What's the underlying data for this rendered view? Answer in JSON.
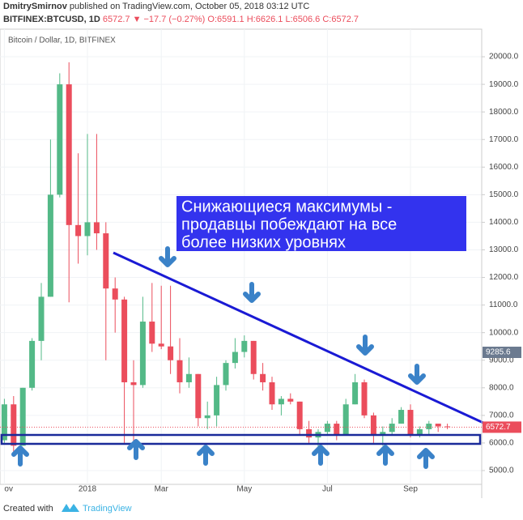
{
  "header": {
    "author": "DmitrySmirnov",
    "published": "published on TradingView.com, October 05, 2018 03:12 UTC",
    "symbol": "BITFINEX:BTCUSD, 1D",
    "last": "6572.7",
    "change": "▼ −17.7 (−0.27%)",
    "ohlc": [
      "O:6591.1",
      "H:6626.1",
      "L:6506.6",
      "C:6572.7"
    ]
  },
  "chart_data": {
    "type": "candlestick",
    "title": "Bitcoin / Dollar, 1D, BITFINEX",
    "categories": [
      "ov",
      null,
      null,
      null,
      null,
      null,
      null,
      null,
      null,
      "2018",
      null,
      null,
      null,
      null,
      null,
      null,
      null,
      "Mar",
      null,
      null,
      null,
      null,
      null,
      null,
      null,
      null,
      "May",
      null,
      null,
      null,
      null,
      null,
      null,
      null,
      null,
      "Jul",
      null,
      null,
      null,
      null,
      null,
      null,
      null,
      null,
      "Sep",
      null,
      null,
      null,
      null
    ],
    "open": [
      6100,
      7400,
      5900,
      8000,
      9700,
      11300,
      15000,
      19000,
      13900,
      13500,
      14000,
      13600,
      11600,
      11200,
      8200,
      8100,
      10400,
      9600,
      9500,
      9000,
      8200,
      8500,
      6900,
      7000,
      8100,
      8900,
      9300,
      9700,
      8500,
      8200,
      7400,
      7600,
      7500,
      6500,
      6200,
      6400,
      6700,
      6300,
      7400,
      8200,
      7000,
      6300,
      6400,
      6700,
      7200,
      6300,
      6500,
      6700,
      6600
    ],
    "high": [
      7600,
      7700,
      8000,
      9800,
      11800,
      17000,
      19400,
      19800,
      16500,
      17200,
      17200,
      14000,
      12000,
      11300,
      9000,
      11300,
      11800,
      11700,
      11700,
      9800,
      9100,
      8500,
      7500,
      8400,
      9000,
      9800,
      9900,
      9700,
      8900,
      8400,
      7700,
      7800,
      7500,
      6800,
      6500,
      6800,
      6800,
      7600,
      8500,
      8300,
      7100,
      6600,
      6900,
      7300,
      7400,
      6600,
      6800,
      6700,
      6700
    ],
    "low": [
      6000,
      5500,
      5900,
      7900,
      9000,
      11300,
      14900,
      11100,
      12500,
      12800,
      13000,
      9000,
      10000,
      6000,
      6000,
      8000,
      9300,
      9400,
      8500,
      7800,
      8000,
      6600,
      6500,
      6600,
      7900,
      8700,
      9100,
      8300,
      7900,
      7200,
      7000,
      7400,
      6300,
      6000,
      5800,
      6300,
      6100,
      6300,
      7400,
      6900,
      6000,
      5900,
      6300,
      6700,
      6200,
      6200,
      6300,
      6400,
      6500
    ],
    "close": [
      7400,
      5900,
      8000,
      9700,
      11300,
      15000,
      19000,
      13900,
      13500,
      14000,
      13600,
      11600,
      11200,
      8200,
      8100,
      10400,
      9600,
      9500,
      9000,
      8200,
      8500,
      6900,
      7000,
      8100,
      8900,
      9300,
      9700,
      8500,
      8200,
      7400,
      7600,
      7500,
      6500,
      6200,
      6400,
      6700,
      6300,
      7400,
      8200,
      7000,
      6300,
      6400,
      6700,
      7200,
      6300,
      6500,
      6700,
      6600,
      6572.7
    ],
    "up_color": "#53b987",
    "down_color": "#eb4d5c",
    "ylim": [
      4500,
      21000
    ],
    "yticks": [
      {
        "value": 5000,
        "label": "5000.0"
      },
      {
        "value": 6000,
        "label": "6000.0"
      },
      {
        "value": 7000,
        "label": "7000.0"
      },
      {
        "value": 8000,
        "label": "8000.0"
      },
      {
        "value": 9000,
        "label": "9000.0"
      },
      {
        "value": 10000,
        "label": "10000.0"
      },
      {
        "value": 11000,
        "label": "11000.0"
      },
      {
        "value": 12000,
        "label": "12000.0"
      },
      {
        "value": 13000,
        "label": "13000.0"
      },
      {
        "value": 14000,
        "label": "14000.0"
      },
      {
        "value": 15000,
        "label": "15000.0"
      },
      {
        "value": 16000,
        "label": "16000.0"
      },
      {
        "value": 17000,
        "label": "17000.0"
      },
      {
        "value": 18000,
        "label": "18000.0"
      },
      {
        "value": 19000,
        "label": "19000.0"
      },
      {
        "value": 20000,
        "label": "20000.0"
      }
    ],
    "grid": true,
    "price_labels": [
      {
        "value": 9285.6,
        "color": "#6b7a8f"
      },
      {
        "value": 6572.7,
        "color": "#eb4d5c"
      }
    ],
    "annotation": [
      "Снижающиеся максимумы -",
      "продавцы побеждают на все",
      "более низких уровнях"
    ]
  },
  "footer": {
    "created": "Created with",
    "brand": "TradingView"
  }
}
